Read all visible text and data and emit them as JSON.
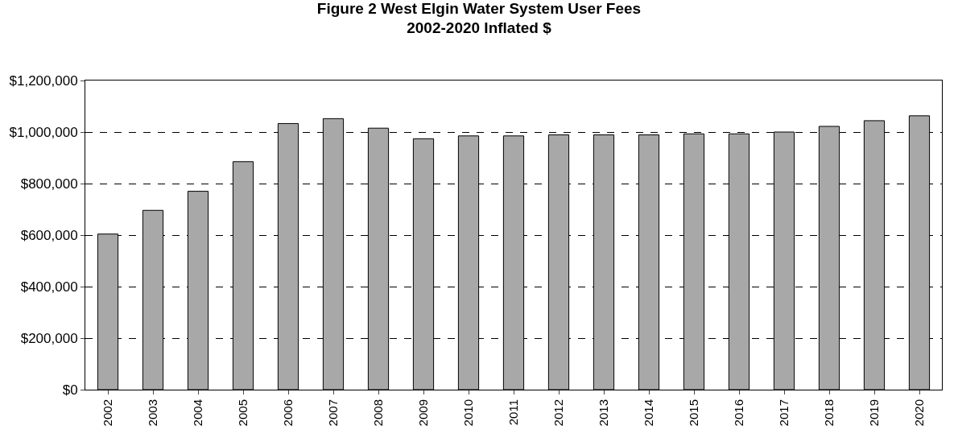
{
  "chart_data": {
    "type": "bar",
    "title": "Figure 2 West Elgin Water System User Fees\n2002-2020 Inflated $",
    "categories": [
      "2002",
      "2003",
      "2004",
      "2005",
      "2006",
      "2007",
      "2008",
      "2009",
      "2010",
      "2011",
      "2012",
      "2013",
      "2014",
      "2015",
      "2016",
      "2017",
      "2018",
      "2019",
      "2020"
    ],
    "values": [
      604000,
      696000,
      770000,
      885000,
      1033000,
      1052000,
      1015000,
      974000,
      985000,
      985000,
      989000,
      989000,
      989000,
      993000,
      993000,
      1000000,
      1022000,
      1044000,
      1063000
    ],
    "color": "#a8a8a8",
    "ylim": [
      0,
      1200000
    ],
    "yticks": [
      {
        "value": 0,
        "label": "$0"
      },
      {
        "value": 200000,
        "label": "$200,000"
      },
      {
        "value": 400000,
        "label": "$400,000"
      },
      {
        "value": 600000,
        "label": "$600,000"
      },
      {
        "value": 800000,
        "label": "$800,000"
      },
      {
        "value": 1000000,
        "label": "$1,000,000"
      },
      {
        "value": 1200000,
        "label": "$1,200,000"
      }
    ],
    "grid": "y"
  }
}
